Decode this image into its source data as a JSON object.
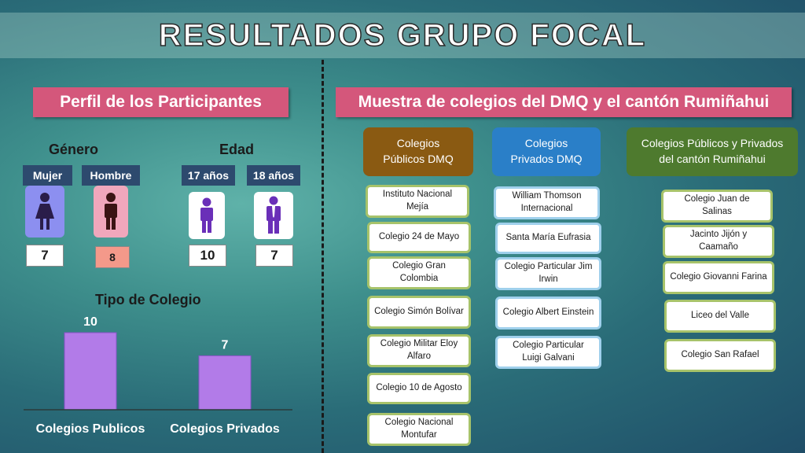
{
  "title": "RESULTADOS GRUPO FOCAL",
  "left": {
    "header": "Perfil de los Participantes",
    "gender_label": "Género",
    "age_label": "Edad",
    "mujer": {
      "label": "Mujer",
      "count": "7"
    },
    "hombre": {
      "label": "Hombre",
      "count": "8"
    },
    "age17": {
      "label": "17 años",
      "count": "10"
    },
    "age18": {
      "label": "18 años",
      "count": "7"
    },
    "chart_title": "Tipo de Colegio"
  },
  "chart_data": {
    "type": "bar",
    "title": "Tipo de Colegio",
    "categories": [
      "Colegios Publicos",
      "Colegios Privados"
    ],
    "values": [
      10,
      7
    ],
    "data_labels": [
      "10",
      "7"
    ],
    "ylim": [
      0,
      10
    ],
    "bar_color": "#b27be8"
  },
  "right": {
    "header": "Muestra de colegios del DMQ y el cantón Rumiñahui",
    "col1": {
      "title": "Colegios Públicos DMQ",
      "color": "#8a5a12",
      "items": [
        "Instituto Nacional Mejía",
        "Colegio 24 de Mayo",
        "Colegio Gran Colombia",
        "Colegio Simón Bolívar",
        "Colegio Militar Eloy Alfaro",
        "Colegio 10 de Agosto",
        "Colegio Nacional Montufar"
      ]
    },
    "col2": {
      "title": "Colegios Privados DMQ",
      "color": "#2a7fc8",
      "items": [
        "William Thomson Internacional",
        "Santa María Eufrasia",
        "Colegio Particular Jim Irwin",
        "Colegio Albert Einstein",
        "Colegio Particular Luigi Galvani"
      ]
    },
    "col3": {
      "title": "Colegios Públicos y Privados del cantón Rumiñahui",
      "color": "#4e7a2e",
      "items": [
        "Colegio Juan de Salinas",
        "Jacinto Jijón y Caamaño",
        "Colegio Giovanni Farina",
        "Liceo del Valle",
        "Colegio San Rafael"
      ]
    }
  }
}
